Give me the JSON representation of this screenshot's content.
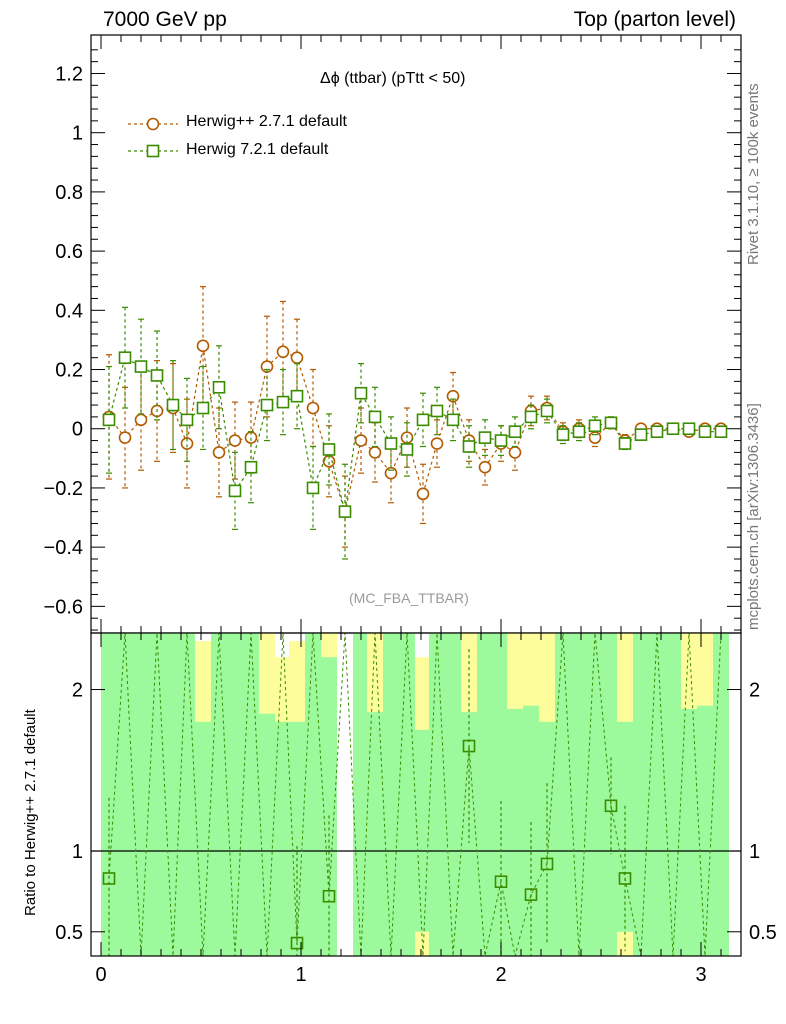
{
  "header": {
    "left": "7000 GeV pp",
    "right": "Top (parton level)"
  },
  "side_labels": {
    "rivet": "Rivet 3.1.10, ≥ 100k events",
    "mcplots": "mcplots.cern.ch [arXiv:1306.3436]"
  },
  "watermark": "(MC_FBA_TTBAR)",
  "colors": {
    "herwigpp": "#b35a00",
    "herwig7": "#3a8c00",
    "band_green": "#9cf99c",
    "band_yellow": "#fdfd9c"
  },
  "chart_data": [
    {
      "type": "scatter",
      "title": "Δϕ (ttbar) (pTtt < 50)",
      "xlabel": "",
      "ylabel": "",
      "xlim": [
        -0.05,
        3.2
      ],
      "ylim": [
        -0.69,
        1.33
      ],
      "y_ticks": [
        "1.2",
        "1",
        "0.8",
        "0.6",
        "0.4",
        "0.2",
        "0",
        "−0.2",
        "−0.4",
        "−0.6"
      ],
      "x_ticks": [
        "0",
        "1",
        "2",
        "3"
      ],
      "legend_position": "top-left",
      "x": [
        0.04,
        0.12,
        0.2,
        0.28,
        0.36,
        0.43,
        0.51,
        0.59,
        0.67,
        0.75,
        0.83,
        0.91,
        0.98,
        1.06,
        1.14,
        1.22,
        1.3,
        1.37,
        1.45,
        1.53,
        1.61,
        1.68,
        1.76,
        1.84,
        1.92,
        2.0,
        2.07,
        2.15,
        2.23,
        2.31,
        2.39,
        2.47,
        2.55,
        2.62,
        2.7,
        2.78,
        2.86,
        2.94,
        3.02,
        3.1
      ],
      "series": [
        {
          "name": "Herwig++ 2.7.1 default",
          "marker": "circle",
          "values": [
            0.04,
            -0.03,
            0.03,
            0.06,
            0.07,
            -0.05,
            0.28,
            -0.08,
            -0.04,
            -0.03,
            0.21,
            0.26,
            0.24,
            0.07,
            -0.11,
            -0.28,
            -0.04,
            -0.08,
            -0.15,
            -0.03,
            -0.22,
            -0.05,
            0.11,
            -0.04,
            -0.13,
            -0.05,
            -0.08,
            0.06,
            0.07,
            -0.01,
            0.0,
            -0.03,
            0.02,
            -0.04,
            0.0,
            0.0,
            0.0,
            -0.01,
            0.0,
            0.0
          ],
          "errors": [
            0.21,
            0.17,
            0.17,
            0.17,
            0.15,
            0.15,
            0.2,
            0.15,
            0.13,
            0.12,
            0.17,
            0.17,
            0.13,
            0.13,
            0.12,
            0.12,
            0.11,
            0.1,
            0.1,
            0.1,
            0.1,
            0.08,
            0.08,
            0.07,
            0.06,
            0.06,
            0.06,
            0.05,
            0.04,
            0.03,
            0.03,
            0.03,
            0.02,
            0.02,
            0.01,
            0.01,
            0.01,
            0.01,
            0.01,
            0.01
          ]
        },
        {
          "name": "Herwig 7.2.1 default",
          "marker": "square",
          "values": [
            0.03,
            0.24,
            0.21,
            0.18,
            0.08,
            0.03,
            0.07,
            0.14,
            -0.21,
            -0.13,
            0.08,
            0.09,
            0.11,
            -0.2,
            -0.07,
            -0.28,
            0.12,
            0.04,
            -0.05,
            -0.07,
            0.03,
            0.06,
            0.03,
            -0.06,
            -0.03,
            -0.04,
            -0.01,
            0.04,
            0.06,
            -0.02,
            -0.01,
            0.01,
            0.02,
            -0.05,
            -0.02,
            -0.01,
            0.0,
            0.0,
            -0.01,
            -0.01
          ],
          "errors": [
            0.18,
            0.17,
            0.16,
            0.15,
            0.15,
            0.14,
            0.14,
            0.14,
            0.13,
            0.12,
            0.12,
            0.11,
            0.11,
            0.14,
            0.12,
            0.16,
            0.1,
            0.1,
            0.09,
            0.09,
            0.09,
            0.08,
            0.07,
            0.07,
            0.06,
            0.05,
            0.05,
            0.04,
            0.04,
            0.03,
            0.03,
            0.03,
            0.02,
            0.02,
            0.01,
            0.01,
            0.01,
            0.01,
            0.01,
            0.01
          ]
        }
      ]
    },
    {
      "type": "scatter",
      "title": "",
      "xlabel": "",
      "ylabel": "Ratio to Herwig++ 2.7.1 default",
      "xlim": [
        -0.05,
        3.2
      ],
      "ylim": [
        0.35,
        2.35
      ],
      "y_ticks": [
        "2",
        "1",
        "0.5"
      ],
      "y_tick_values": [
        2,
        1,
        0.5
      ],
      "x_ticks": [
        "0",
        "1",
        "2",
        "3"
      ],
      "reference_line": 1,
      "band_yellow_upper": [
        2.35,
        2.35,
        2.35,
        2.35,
        2.35,
        2.35,
        2.3,
        2.35,
        2.35,
        2.35,
        2.35,
        2.2,
        2.3,
        2.35,
        2.35,
        null,
        2.35,
        2.35,
        2.35,
        2.35,
        2.2,
        2.35,
        2.35,
        2.35,
        2.35,
        2.35,
        2.35,
        2.35,
        2.35,
        2.35,
        2.35,
        2.35,
        2.35,
        2.35,
        2.35,
        2.35,
        2.35,
        2.35,
        2.35,
        2.35
      ],
      "band_green_upper": [
        2.35,
        2.35,
        2.35,
        2.35,
        2.35,
        2.35,
        1.8,
        2.35,
        2.35,
        2.35,
        1.85,
        1.8,
        1.8,
        2.35,
        2.2,
        null,
        2.35,
        1.86,
        2.35,
        2.35,
        1.75,
        2.35,
        2.35,
        1.86,
        2.35,
        2.35,
        1.88,
        1.9,
        1.8,
        2.35,
        2.35,
        2.35,
        2.35,
        1.8,
        2.35,
        2.35,
        2.35,
        1.88,
        1.9,
        2.35
      ],
      "band_green_lower": [
        0.35,
        0.35,
        0.35,
        0.35,
        0.35,
        0.35,
        0.35,
        0.35,
        0.35,
        0.35,
        0.35,
        0.35,
        0.35,
        0.35,
        0.35,
        null,
        0.35,
        0.35,
        0.35,
        0.35,
        0.5,
        0.35,
        0.35,
        0.35,
        0.35,
        0.35,
        0.35,
        0.35,
        0.35,
        0.35,
        0.35,
        0.35,
        0.35,
        0.5,
        0.35,
        0.35,
        0.35,
        0.35,
        0.35,
        0.35
      ],
      "series": [
        {
          "name": "Herwig 7.2.1 default",
          "x": [
            0.04,
            0.98,
            1.14,
            1.84,
            2.0,
            2.15,
            2.23,
            2.55,
            2.62
          ],
          "values": [
            0.83,
            0.43,
            0.72,
            1.65,
            0.81,
            0.73,
            0.92,
            1.28,
            0.83
          ],
          "errors": [
            0.5,
            0.6,
            0.5,
            0.6,
            0.5,
            0.45,
            0.5,
            0.3,
            0.45
          ]
        }
      ]
    }
  ]
}
